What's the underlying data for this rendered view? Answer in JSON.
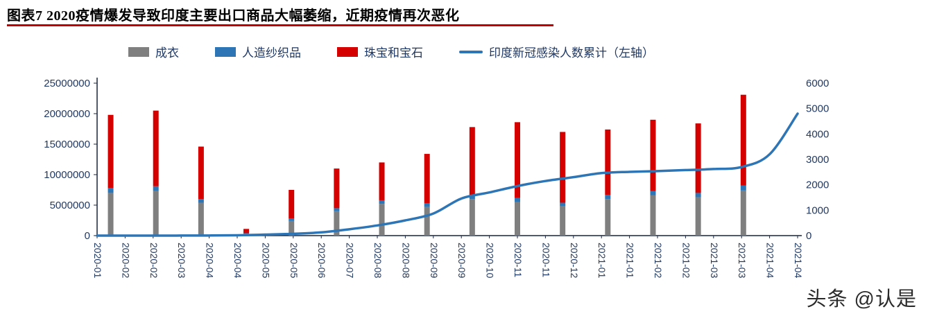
{
  "title": {
    "text": "图表7 2020疫情爆发导致印度主要出口商品大幅萎缩，近期疫情再次恶化"
  },
  "watermark": {
    "text": "头条 @认是"
  },
  "colors": {
    "axis_text": "#1f3864",
    "axis_line": "#17233f",
    "title_underline": "#c00000",
    "watermark": "#2a2a2a",
    "garments_bar": "#7f7f7f",
    "rayon_bar": "#2e75b6",
    "jewelry_bar": "#d40000",
    "covid_line": "#2e75b6"
  },
  "legend": {
    "items": [
      {
        "label": "成衣",
        "swatch": "bar",
        "color": "#7f7f7f"
      },
      {
        "label": "人造纱织品",
        "swatch": "bar",
        "color": "#2e75b6"
      },
      {
        "label": "珠宝和宝石",
        "swatch": "bar",
        "color": "#d40000"
      },
      {
        "label": "印度新冠感染人数累计（左轴）",
        "swatch": "line",
        "color": "#2e75b6"
      }
    ]
  },
  "chart_data": {
    "type": "bar+line combo (stacked bars on left axis, cumulative line on right axis)",
    "bar_categories": [
      "2020-01",
      "2020-02",
      "2020-03",
      "2020-04",
      "2020-05",
      "2020-06",
      "2020-07",
      "2020-08",
      "2020-09",
      "2020-10",
      "2020-11",
      "2020-12",
      "2021-01",
      "2021-02",
      "2021-03"
    ],
    "series": [
      {
        "name": "成衣",
        "type": "bar",
        "axis": "left",
        "stacked": true,
        "color": "#7f7f7f",
        "values": [
          7000000,
          7300000,
          5400000,
          300000,
          2400000,
          4000000,
          5200000,
          4700000,
          6000000,
          5500000,
          4800000,
          6000000,
          6600000,
          6300000,
          7400000
        ]
      },
      {
        "name": "人造纱织品",
        "type": "bar",
        "axis": "left",
        "stacked": true,
        "color": "#2e75b6",
        "values": [
          800000,
          800000,
          600000,
          100000,
          400000,
          500000,
          600000,
          600000,
          700000,
          700000,
          600000,
          700000,
          700000,
          700000,
          800000
        ]
      },
      {
        "name": "珠宝和宝石",
        "type": "bar",
        "axis": "left",
        "stacked": true,
        "color": "#d40000",
        "values": [
          12000000,
          12400000,
          8600000,
          700000,
          4700000,
          6500000,
          6200000,
          8100000,
          11100000,
          12400000,
          11600000,
          10700000,
          11700000,
          11400000,
          14900000
        ]
      },
      {
        "name": "印度新冠感染人数累计（左轴）",
        "type": "line",
        "axis": "right",
        "color": "#2e75b6",
        "x_span": "one point per x tick slot from 2020-01 to 2021-04",
        "values": [
          0,
          0,
          0,
          2,
          5,
          15,
          40,
          70,
          130,
          250,
          400,
          600,
          870,
          1460,
          1700,
          1950,
          2150,
          2300,
          2460,
          2510,
          2540,
          2580,
          2620,
          2700,
          3200,
          4800
        ]
      }
    ],
    "x_tick_labels": [
      "2020-01",
      "2020-02",
      "2020-02",
      "2020-03",
      "2020-04",
      "2020-04",
      "2020-05",
      "2020-05",
      "2020-06",
      "2020-07",
      "2020-08",
      "2020-08",
      "2020-09",
      "2020-09",
      "2020-10",
      "2020-11",
      "2020-11",
      "2020-12",
      "2021-01",
      "2021-01",
      "2021-02",
      "2021-02",
      "2021-03",
      "2021-03",
      "2021-04",
      "2021-04"
    ],
    "left_axis": {
      "ticks": [
        0,
        5000000,
        10000000,
        15000000,
        20000000,
        25000000
      ],
      "range": [
        0,
        25000000
      ]
    },
    "right_axis": {
      "ticks": [
        0,
        1000,
        2000,
        3000,
        4000,
        5000,
        6000
      ],
      "range": [
        0,
        6000
      ]
    },
    "grid": false,
    "legend_position": "top"
  }
}
